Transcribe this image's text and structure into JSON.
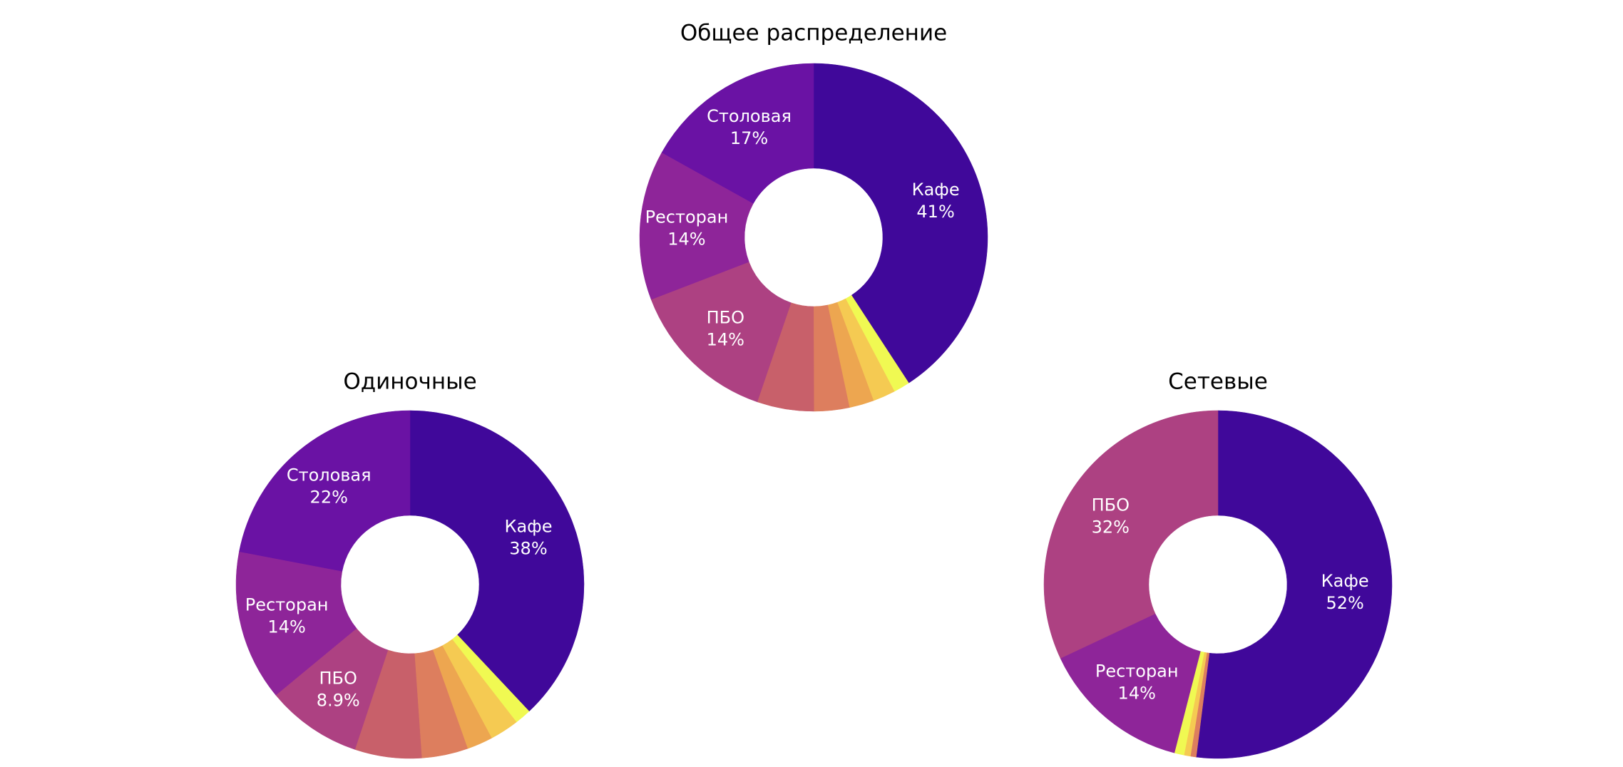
{
  "chart_data": [
    {
      "type": "pie",
      "title": "Общее распределение",
      "categories": [
        "Кафе",
        "Столовая",
        "Ресторан",
        "ПБО",
        null,
        null,
        null,
        null,
        null
      ],
      "values": [
        41,
        17,
        14,
        14,
        5.3,
        3.3,
        2.3,
        2.1,
        1.5
      ],
      "value_labels": [
        "41%",
        "17%",
        "14%",
        "14%",
        null,
        null,
        null,
        null,
        null
      ],
      "colors": [
        "#40089a",
        "#6a12a4",
        "#8e2599",
        "#ad4182",
        "#c8606a",
        "#dd7e5e",
        "#eda650",
        "#f5ca52",
        "#f0f952"
      ]
    },
    {
      "type": "pie",
      "title": "Одиночные",
      "categories": [
        "Кафе",
        "Столовая",
        "Ресторан",
        "ПБО",
        null,
        null,
        null,
        null,
        null
      ],
      "values": [
        38,
        22,
        14,
        8.9,
        6.2,
        4.3,
        2.4,
        2.7,
        1.5
      ],
      "value_labels": [
        "38%",
        "22%",
        "14%",
        "8.9%",
        null,
        null,
        null,
        null,
        null
      ],
      "colors": [
        "#40089a",
        "#6a12a4",
        "#8e2599",
        "#ad4182",
        "#c8606a",
        "#dd7e5e",
        "#eda650",
        "#f5ca52",
        "#f0f952"
      ]
    },
    {
      "type": "pie",
      "title": "Сетевые",
      "categories": [
        "Кафе",
        "ПБО",
        "Ресторан",
        null,
        null,
        null
      ],
      "values": [
        52,
        32,
        14,
        0.9,
        0.6,
        0.5
      ],
      "value_labels": [
        "52%",
        "32%",
        "14%",
        null,
        null,
        null
      ],
      "colors": [
        "#40089a",
        "#ad4182",
        "#8e2599",
        "#f0f952",
        "#f5ca52",
        "#dd7e5e"
      ]
    }
  ]
}
